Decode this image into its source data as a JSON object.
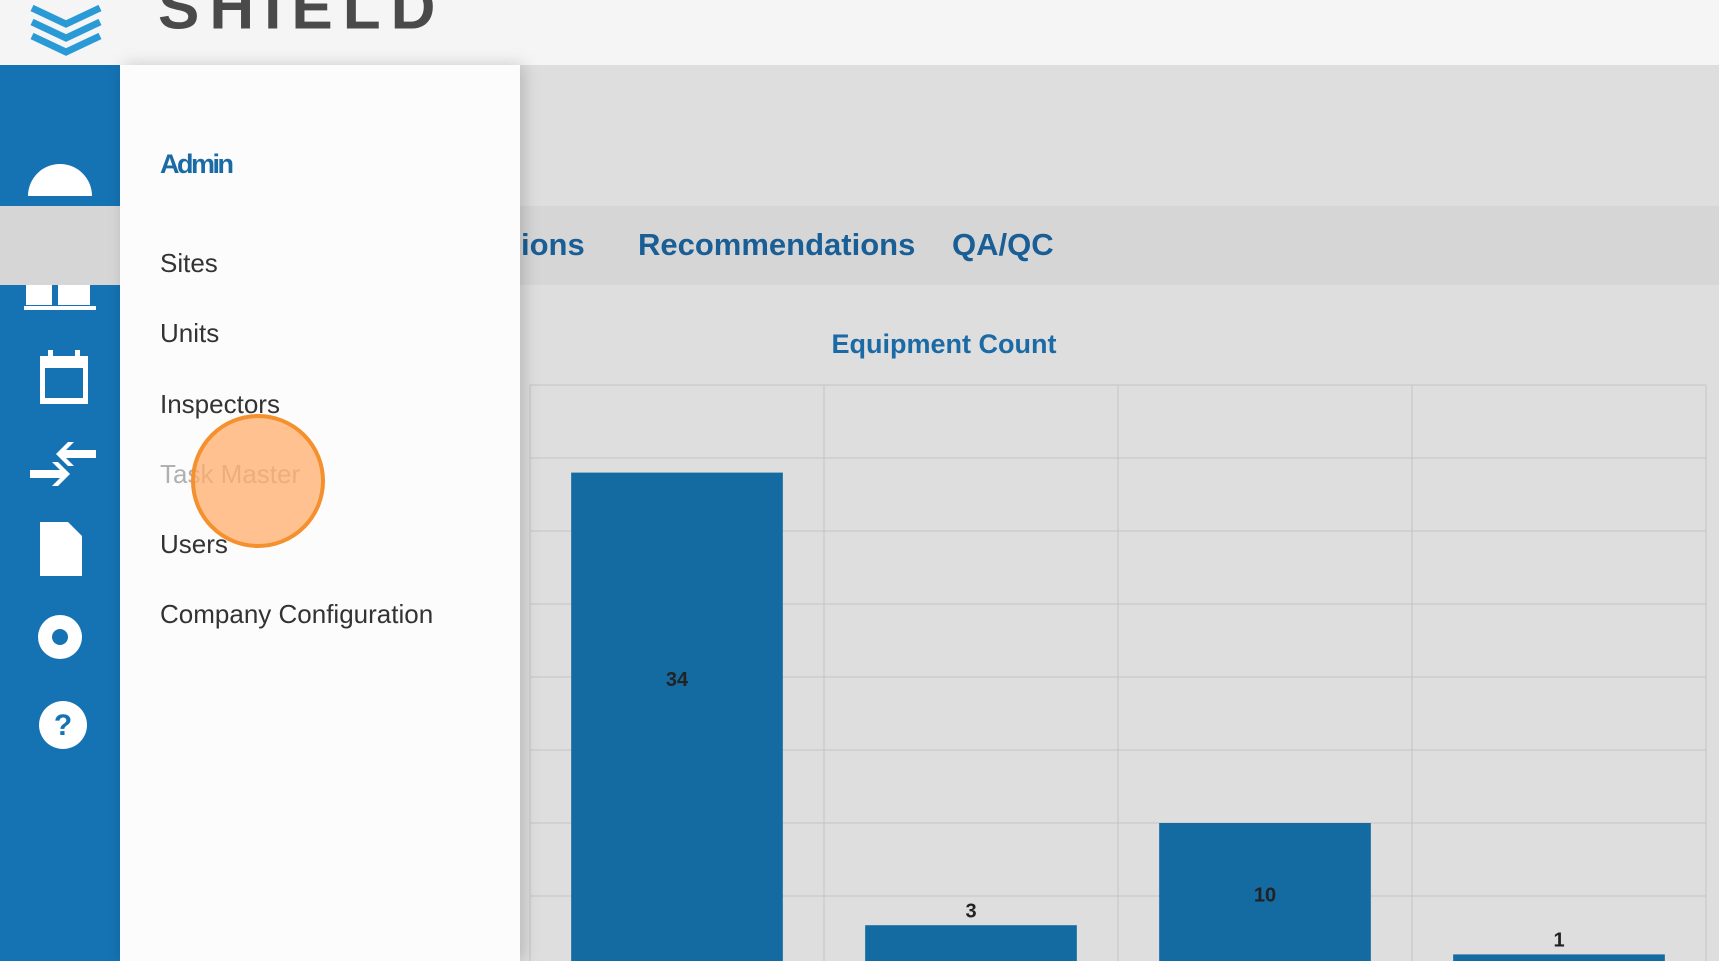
{
  "header": {
    "logo_text": "SHIELD"
  },
  "menu": {
    "title": "Admin",
    "items": [
      "Sites",
      "Units",
      "Inspectors",
      "Task Master",
      "Users",
      "Company Configuration"
    ]
  },
  "tabs": [
    "ions",
    "Recommendations",
    "QA/QC"
  ],
  "chart_data": {
    "type": "bar",
    "title": "Equipment Count",
    "categories": [
      null,
      null,
      null,
      null
    ],
    "values": [
      34,
      3,
      10,
      1
    ],
    "color": "#136ba1",
    "ylim": [
      0,
      40
    ],
    "grid": true
  }
}
